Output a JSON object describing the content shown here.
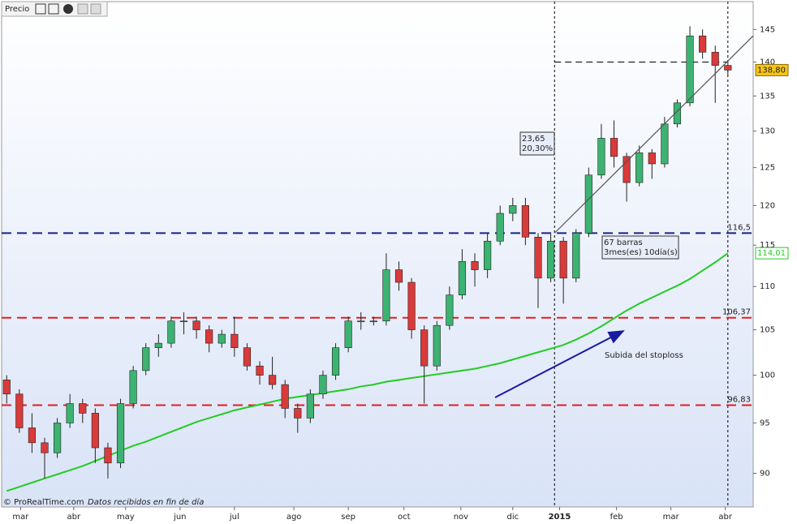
{
  "chart_data": {
    "type": "candlestick",
    "title": "Precio",
    "source": "© ProRealTime.com",
    "note": "Datos recibidos en fin de día",
    "log_scale": true,
    "ylim": [
      86.8,
      149.4
    ],
    "yticks": [
      90,
      95,
      100,
      105,
      110,
      115,
      120,
      125,
      130,
      135,
      140,
      145
    ],
    "xlim": [
      -0.4,
      59
    ],
    "xticks": [
      {
        "value": 1.1,
        "label": "mar"
      },
      {
        "value": 5.3,
        "label": "abr"
      },
      {
        "value": 9.4,
        "label": "may"
      },
      {
        "value": 13.7,
        "label": "jun"
      },
      {
        "value": 18.0,
        "label": "jul"
      },
      {
        "value": 22.7,
        "label": "ago"
      },
      {
        "value": 27.0,
        "label": "sep"
      },
      {
        "value": 31.4,
        "label": "oct"
      },
      {
        "value": 35.9,
        "label": "nov"
      },
      {
        "value": 40.0,
        "label": "dic"
      },
      {
        "value": 43.7,
        "label": "2015"
      },
      {
        "value": 48.2,
        "label": "feb"
      },
      {
        "value": 52.5,
        "label": "mar"
      },
      {
        "value": 56.8,
        "label": "abr"
      }
    ],
    "up_color": "#3cb371",
    "down_color": "#d93a3a",
    "open": [
      99.5,
      98,
      94.5,
      93,
      92,
      95,
      97,
      96,
      92.5,
      91,
      97,
      100.5,
      103,
      103.5,
      106,
      106,
      105,
      103.5,
      104.5,
      103,
      101,
      100,
      99,
      96.5,
      95.5,
      98,
      100,
      103,
      106,
      106,
      106,
      112,
      110.5,
      105,
      101,
      105.5,
      109,
      113,
      112,
      115.5,
      119,
      120,
      116,
      111,
      115.5,
      111,
      116.5,
      124,
      129,
      126.5,
      123,
      127,
      125.5,
      131,
      134,
      144,
      141.5,
      139.5
    ],
    "high": [
      100,
      98.5,
      96,
      93.5,
      95.5,
      98,
      97.5,
      96.5,
      93,
      97.5,
      101,
      103.5,
      104.5,
      106.5,
      107,
      106.5,
      105.5,
      105,
      106.5,
      103.5,
      101.5,
      102,
      99.5,
      97,
      98.5,
      100.5,
      103.5,
      106.5,
      107,
      106.5,
      114,
      113,
      111,
      105.5,
      106,
      110,
      114.5,
      114,
      116.5,
      120,
      121,
      121,
      116.5,
      116.5,
      116,
      117,
      125,
      131,
      131.5,
      127,
      128,
      127.5,
      132,
      134.5,
      145.5,
      145,
      142.5,
      140
    ],
    "low": [
      97,
      94,
      92,
      89.5,
      91.5,
      94.5,
      95,
      91,
      89.5,
      90.5,
      96.5,
      100,
      102,
      103,
      104.5,
      104,
      102.5,
      103,
      102,
      100.5,
      99,
      98.5,
      95.5,
      94,
      95,
      97.5,
      99.5,
      102.5,
      105,
      105.5,
      105.5,
      109.5,
      104,
      97,
      100.5,
      105,
      108.5,
      110,
      111,
      115,
      118,
      115,
      107.5,
      110.5,
      108,
      110.5,
      116,
      123.5,
      125,
      120.5,
      122.5,
      123.5,
      125,
      130.5,
      133.5,
      140.5,
      134,
      138
    ],
    "close": [
      98,
      94.5,
      93,
      92,
      95,
      97,
      96,
      92.5,
      91,
      97,
      100.5,
      103,
      103.5,
      106,
      106,
      105,
      103.5,
      104.5,
      103,
      101,
      100,
      99,
      96.5,
      95.5,
      98,
      100,
      103,
      106,
      106,
      106,
      112,
      110.5,
      105,
      101,
      105.5,
      109,
      113,
      112,
      115.5,
      119,
      120,
      116,
      111,
      115.5,
      111,
      116.5,
      124,
      129,
      126.5,
      123,
      127,
      125.5,
      131,
      134,
      144,
      141.5,
      139.5,
      138.8
    ],
    "last_price": {
      "value": 138.8,
      "label": "138,80"
    },
    "moving_average": {
      "color": "#22cc22",
      "last_label": "114,01",
      "values": [
        88.3,
        88.7,
        89.1,
        89.5,
        89.9,
        90.3,
        90.7,
        91.2,
        91.7,
        92.2,
        92.7,
        93.1,
        93.6,
        94.1,
        94.6,
        95.1,
        95.5,
        95.9,
        96.3,
        96.6,
        96.9,
        97.2,
        97.5,
        97.7,
        97.9,
        98.1,
        98.3,
        98.5,
        98.8,
        99.0,
        99.3,
        99.5,
        99.7,
        99.9,
        100.1,
        100.3,
        100.5,
        100.7,
        101.0,
        101.3,
        101.7,
        102.1,
        102.5,
        102.9,
        103.3,
        103.9,
        104.6,
        105.4,
        106.3,
        107.2,
        108.0,
        108.7,
        109.4,
        110.1,
        110.9,
        111.9,
        112.9,
        114.01
      ]
    },
    "levels": [
      {
        "value": 116.5,
        "label": "116,5",
        "color": "#1a237e"
      },
      {
        "value": 106.37,
        "label": "106,37",
        "color": "#e02020"
      },
      {
        "value": 96.83,
        "label": "96,83",
        "color": "#e02020"
      }
    ],
    "target_line": {
      "value": 140,
      "x": [
        43.3,
        57
      ]
    },
    "vlines": [
      43.3,
      57
    ],
    "trendline": {
      "x": [
        43.3,
        59
      ],
      "y": [
        116.5,
        144
      ]
    },
    "annotations": [
      {
        "lines": [
          "23,65",
          "20,30%"
        ]
      },
      {
        "lines": [
          "67 barras",
          "3mes(es) 10día(s)"
        ]
      }
    ],
    "arrow_text": "Subida del stoploss"
  }
}
